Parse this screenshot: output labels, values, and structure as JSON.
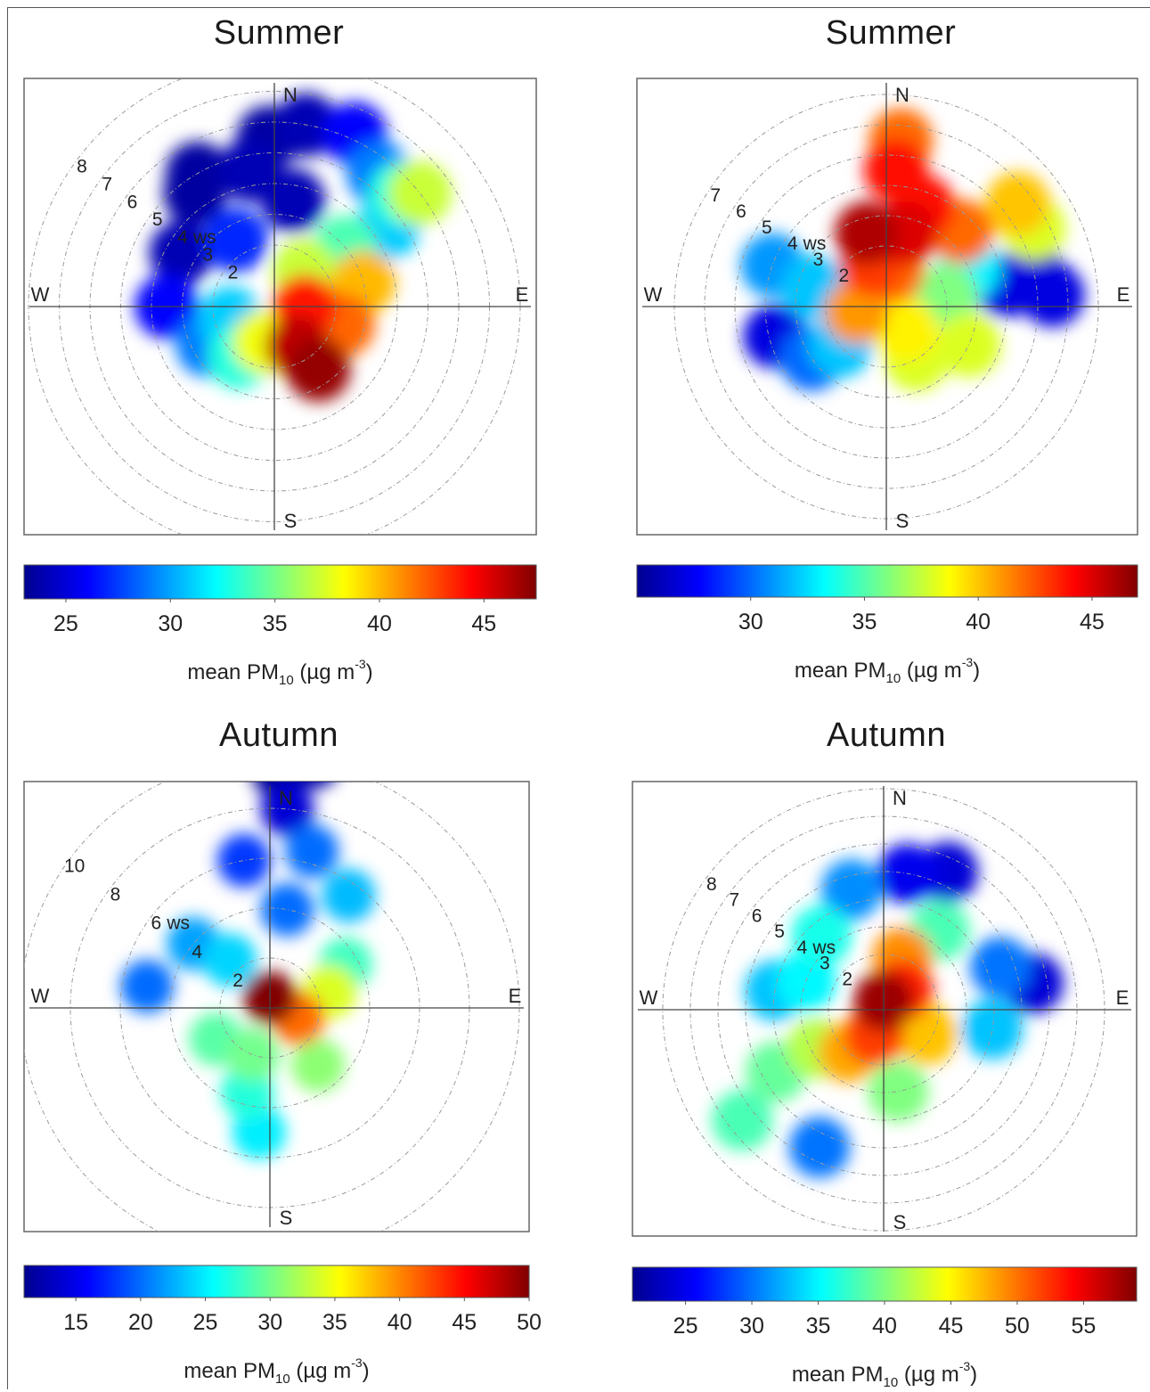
{
  "chart_data": [
    {
      "type": "polar",
      "title": "Summer",
      "radial_label": "ws",
      "compass": [
        "N",
        "E",
        "S",
        "W"
      ],
      "rings": [
        2,
        3,
        4,
        5,
        6,
        7,
        8
      ],
      "colorbar": {
        "label_main": "mean PM",
        "label_sub": "10",
        "label_unit": "(µg m",
        "label_exp": "-3",
        "label_close": ")",
        "ticks": [
          25,
          30,
          35,
          40,
          45
        ],
        "min": 23,
        "max": 47.5
      },
      "blobs": [
        {
          "ws": 1.5,
          "deg": 150,
          "value": 46
        },
        {
          "ws": 2.5,
          "deg": 145,
          "value": 47
        },
        {
          "ws": 1.0,
          "deg": 90,
          "value": 44
        },
        {
          "ws": 2.3,
          "deg": 105,
          "value": 42
        },
        {
          "ws": 3.0,
          "deg": 75,
          "value": 40
        },
        {
          "ws": 1.2,
          "deg": 195,
          "value": 38
        },
        {
          "ws": 2.0,
          "deg": 215,
          "value": 33
        },
        {
          "ws": 2.5,
          "deg": 240,
          "value": 29
        },
        {
          "ws": 1.5,
          "deg": 255,
          "value": 31
        },
        {
          "ws": 1.5,
          "deg": 40,
          "value": 37
        },
        {
          "ws": 3.0,
          "deg": 50,
          "value": 34
        },
        {
          "ws": 3.5,
          "deg": 10,
          "value": 24
        },
        {
          "ws": 2.5,
          "deg": 330,
          "value": 27
        },
        {
          "ws": 3.5,
          "deg": 300,
          "value": 24
        },
        {
          "ws": 4.5,
          "deg": 350,
          "value": 24
        },
        {
          "ws": 5.5,
          "deg": 358,
          "value": 23.5
        },
        {
          "ws": 6.0,
          "deg": 10,
          "value": 24
        },
        {
          "ws": 6.2,
          "deg": 25,
          "value": 26
        },
        {
          "ws": 5.5,
          "deg": 38,
          "value": 29
        },
        {
          "ws": 5.5,
          "deg": 48,
          "value": 33
        },
        {
          "ws": 6.0,
          "deg": 52,
          "value": 37
        },
        {
          "ws": 4.5,
          "deg": 55,
          "value": 31
        },
        {
          "ws": 4.5,
          "deg": 325,
          "value": 23.5
        },
        {
          "ws": 5.0,
          "deg": 330,
          "value": 23.5
        },
        {
          "ws": 3.5,
          "deg": 270,
          "value": 26
        }
      ]
    },
    {
      "type": "polar",
      "title": "Summer",
      "radial_label": "ws",
      "compass": [
        "N",
        "E",
        "S",
        "W"
      ],
      "rings": [
        2,
        3,
        4,
        5,
        6,
        7
      ],
      "colorbar": {
        "label_main": "mean PM",
        "label_sub": "10",
        "label_unit": "(µg m",
        "label_exp": "-3",
        "label_close": ")",
        "ticks": [
          30,
          35,
          40,
          45
        ],
        "min": 25,
        "max": 47
      },
      "blobs": [
        {
          "ws": 2.5,
          "deg": 345,
          "value": 46
        },
        {
          "ws": 2.5,
          "deg": 15,
          "value": 45
        },
        {
          "ws": 1.5,
          "deg": 340,
          "value": 43
        },
        {
          "ws": 1.2,
          "deg": 10,
          "value": 42
        },
        {
          "ws": 3.5,
          "deg": 20,
          "value": 44
        },
        {
          "ws": 4.5,
          "deg": 4,
          "value": 44
        },
        {
          "ws": 5.5,
          "deg": 5,
          "value": 42
        },
        {
          "ws": 3.5,
          "deg": 45,
          "value": 42
        },
        {
          "ws": 3.0,
          "deg": 65,
          "value": 33
        },
        {
          "ws": 4.0,
          "deg": 80,
          "value": 27
        },
        {
          "ws": 5.0,
          "deg": 78,
          "value": 26
        },
        {
          "ws": 5.5,
          "deg": 86,
          "value": 27
        },
        {
          "ws": 5.5,
          "deg": 62,
          "value": 38
        },
        {
          "ws": 5.5,
          "deg": 52,
          "value": 40
        },
        {
          "ws": 2.0,
          "deg": 80,
          "value": 36
        },
        {
          "ws": 1.0,
          "deg": 140,
          "value": 39
        },
        {
          "ws": 2.0,
          "deg": 150,
          "value": 38
        },
        {
          "ws": 3.0,
          "deg": 115,
          "value": 38
        },
        {
          "ws": 1.0,
          "deg": 260,
          "value": 41
        },
        {
          "ws": 2.0,
          "deg": 230,
          "value": 32
        },
        {
          "ws": 3.0,
          "deg": 235,
          "value": 30
        },
        {
          "ws": 3.8,
          "deg": 255,
          "value": 27
        },
        {
          "ws": 2.5,
          "deg": 285,
          "value": 32
        },
        {
          "ws": 4.0,
          "deg": 290,
          "value": 31
        }
      ]
    },
    {
      "type": "polar",
      "title": "Autumn",
      "radial_label": "ws",
      "compass": [
        "N",
        "E",
        "S",
        "W"
      ],
      "rings": [
        2,
        4,
        6,
        8,
        10
      ],
      "colorbar": {
        "label_main": "mean PM",
        "label_sub": "10",
        "label_unit": "(µg m",
        "label_exp": "-3",
        "label_close": ")",
        "ticks": [
          15,
          20,
          25,
          30,
          35,
          40,
          45,
          50
        ],
        "min": 11,
        "max": 50
      },
      "blobs": [
        {
          "ws": 0.4,
          "deg": 0,
          "value": 50
        },
        {
          "ws": 1.2,
          "deg": 110,
          "value": 41
        },
        {
          "ws": 2.5,
          "deg": 75,
          "value": 34
        },
        {
          "ws": 3.5,
          "deg": 60,
          "value": 28
        },
        {
          "ws": 2.0,
          "deg": 200,
          "value": 30
        },
        {
          "ws": 3.5,
          "deg": 195,
          "value": 27
        },
        {
          "ws": 5.0,
          "deg": 185,
          "value": 25
        },
        {
          "ws": 2.5,
          "deg": 240,
          "value": 29
        },
        {
          "ws": 2.5,
          "deg": 320,
          "value": 24
        },
        {
          "ws": 4.0,
          "deg": 310,
          "value": 22
        },
        {
          "ws": 5.0,
          "deg": 280,
          "value": 20
        },
        {
          "ws": 4.0,
          "deg": 10,
          "value": 20
        },
        {
          "ws": 6.0,
          "deg": 350,
          "value": 18
        },
        {
          "ws": 6.5,
          "deg": 15,
          "value": 20
        },
        {
          "ws": 8.0,
          "deg": 5,
          "value": 14
        },
        {
          "ws": 9.5,
          "deg": 2,
          "value": 11
        },
        {
          "ws": 10.0,
          "deg": 10,
          "value": 12
        },
        {
          "ws": 5.5,
          "deg": 35,
          "value": 23
        },
        {
          "ws": 3.0,
          "deg": 140,
          "value": 31
        }
      ]
    },
    {
      "type": "polar",
      "title": "Autumn",
      "radial_label": "ws",
      "compass": [
        "N",
        "E",
        "S",
        "W"
      ],
      "rings": [
        2,
        3,
        4,
        5,
        6,
        7,
        8
      ],
      "colorbar": {
        "label_main": "mean PM",
        "label_sub": "10",
        "label_unit": "(µg m",
        "label_exp": "-3",
        "label_close": ")",
        "ticks": [
          25,
          30,
          35,
          40,
          45,
          50,
          55
        ],
        "min": 21,
        "max": 59
      },
      "blobs": [
        {
          "ws": 0.3,
          "deg": 0,
          "value": 58
        },
        {
          "ws": 1.0,
          "deg": 45,
          "value": 53
        },
        {
          "ws": 1.0,
          "deg": 200,
          "value": 52
        },
        {
          "ws": 2.0,
          "deg": 20,
          "value": 49
        },
        {
          "ws": 2.0,
          "deg": 220,
          "value": 48
        },
        {
          "ws": 1.8,
          "deg": 120,
          "value": 47
        },
        {
          "ws": 2.8,
          "deg": 240,
          "value": 42
        },
        {
          "ws": 3.5,
          "deg": 35,
          "value": 38
        },
        {
          "ws": 3.5,
          "deg": 320,
          "value": 36
        },
        {
          "ws": 4.5,
          "deg": 345,
          "value": 31
        },
        {
          "ws": 5.0,
          "deg": 10,
          "value": 25
        },
        {
          "ws": 5.5,
          "deg": 25,
          "value": 24
        },
        {
          "ws": 4.5,
          "deg": 70,
          "value": 30
        },
        {
          "ws": 5.5,
          "deg": 80,
          "value": 24
        },
        {
          "ws": 4.0,
          "deg": 100,
          "value": 33
        },
        {
          "ws": 3.0,
          "deg": 290,
          "value": 35
        },
        {
          "ws": 4.0,
          "deg": 280,
          "value": 33
        },
        {
          "ws": 4.5,
          "deg": 240,
          "value": 39
        },
        {
          "ws": 6.5,
          "deg": 232,
          "value": 38
        },
        {
          "ws": 5.5,
          "deg": 205,
          "value": 30
        },
        {
          "ws": 3.0,
          "deg": 170,
          "value": 40
        }
      ]
    }
  ]
}
